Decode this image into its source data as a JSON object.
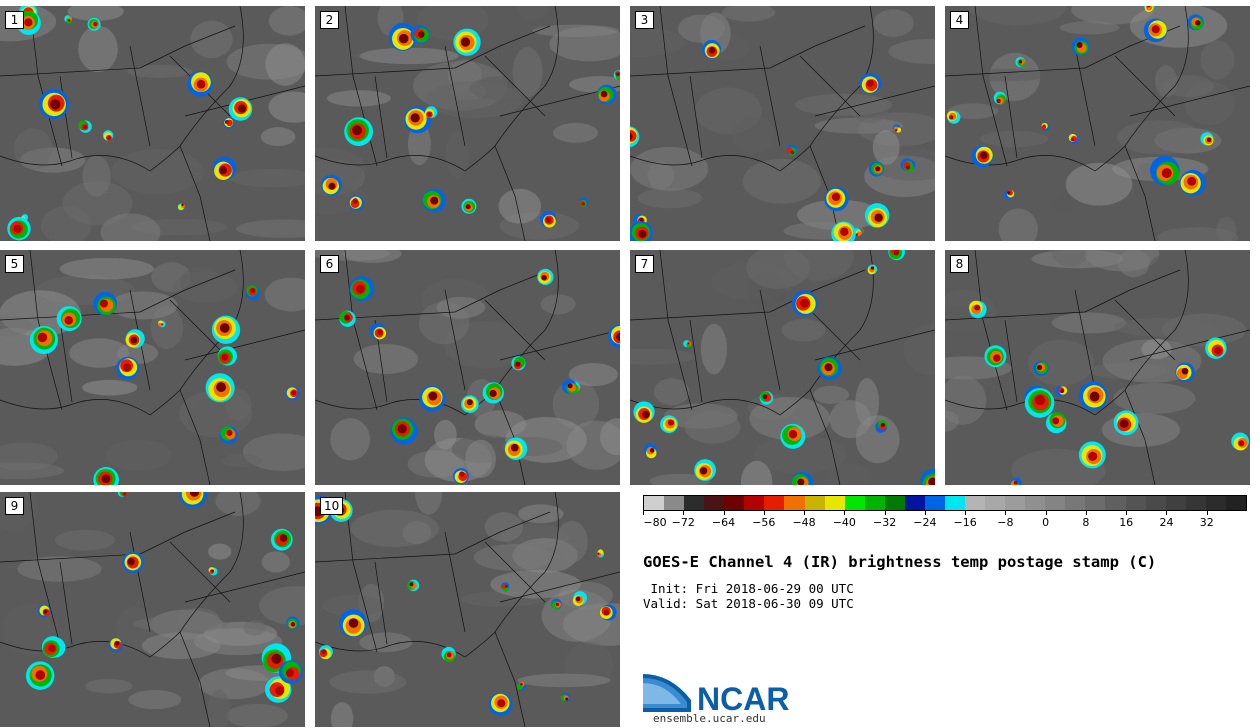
{
  "panels": [
    {
      "label": "1"
    },
    {
      "label": "2"
    },
    {
      "label": "3"
    },
    {
      "label": "4"
    },
    {
      "label": "5"
    },
    {
      "label": "6"
    },
    {
      "label": "7"
    },
    {
      "label": "8"
    },
    {
      "label": "9"
    },
    {
      "label": "10"
    }
  ],
  "colorbar": {
    "colors": [
      "#cfcfcf",
      "#8a8a8a",
      "#2c2c2c",
      "#4a1414",
      "#6e0000",
      "#b30000",
      "#e61e00",
      "#f07000",
      "#c8b400",
      "#e6e600",
      "#00e600",
      "#00b400",
      "#007a00",
      "#0014a0",
      "#0064e6",
      "#00e6f0",
      "#b4b4b4",
      "#a8a8a8",
      "#9c9c9c",
      "#909090",
      "#848484",
      "#787878",
      "#6c6c6c",
      "#606060",
      "#545454",
      "#4a4a4a",
      "#404040",
      "#363636",
      "#2c2c2c",
      "#222222"
    ],
    "tick_labels": [
      "−80",
      "−72",
      "−64",
      "−56",
      "−48",
      "−40",
      "−32",
      "−24",
      "−16",
      "−8",
      "0",
      "8",
      "16",
      "24",
      "32"
    ]
  },
  "title": "GOES-E Channel 4 (IR) brightness temp postage stamp (C)",
  "init": " Init: Fri 2018-06-29 00 UTC",
  "valid": "Valid: Sat 2018-06-30 09 UTC",
  "logo": {
    "text": "NCAR",
    "url": "ensemble.ucar.edu",
    "color": "#0a5fa8"
  }
}
